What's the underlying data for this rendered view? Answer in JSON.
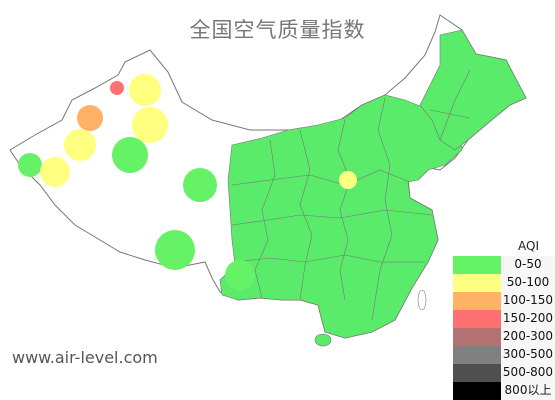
{
  "map": {
    "title": "全国空气质量指数",
    "region": "china",
    "colors": {
      "land": "#5aeb6a",
      "no_data": "#ffffff",
      "border": "#777777"
    },
    "readings": [
      {
        "level": 0
      },
      {
        "level": 0
      },
      {
        "level": 0
      },
      {
        "level": 0
      },
      {
        "level": 0
      },
      {
        "level": 1
      },
      {
        "level": 1
      },
      {
        "level": 1
      },
      {
        "level": 1
      },
      {
        "level": 1
      },
      {
        "level": 2
      },
      {
        "level": 3
      }
    ]
  },
  "legend": {
    "title": "AQI",
    "items": [
      {
        "label": "0-50",
        "color": "#66f266"
      },
      {
        "label": "50-100",
        "color": "#ffff80"
      },
      {
        "label": "100-150",
        "color": "#ffb266"
      },
      {
        "label": "150-200",
        "color": "#ff7070"
      },
      {
        "label": "200-300",
        "color": "#b37373"
      },
      {
        "label": "300-500",
        "color": "#808080"
      },
      {
        "label": "500-800",
        "color": "#505050"
      },
      {
        "label": "800以上",
        "color": "#000000"
      }
    ]
  },
  "footer": {
    "site": "www.air-level.com"
  }
}
